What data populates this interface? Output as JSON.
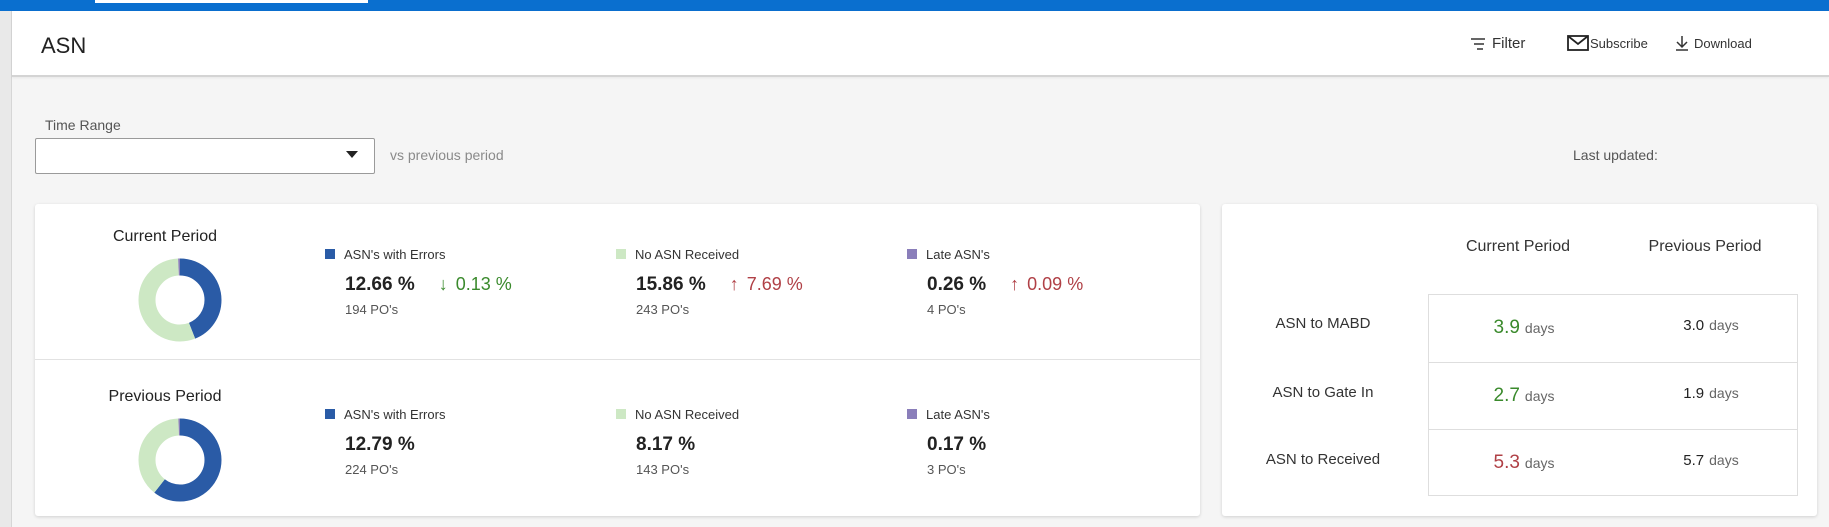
{
  "header": {
    "title": "ASN",
    "filter_label": "Filter",
    "subscribe_label": "Subscribe",
    "download_label": "Download"
  },
  "time_range": {
    "label": "Time Range",
    "value": "",
    "vs_label": "vs previous period",
    "last_updated_label": "Last updated:"
  },
  "colors": {
    "errors": "#2a5ba6",
    "no_asn": "#cde8c4",
    "late": "#8a7eba",
    "good": "#3a8a2c",
    "bad": "#b04046",
    "topbar": "#0a6fcf"
  },
  "summary": {
    "current": {
      "title": "Current Period",
      "donut": [
        12.66,
        15.86,
        0.26
      ],
      "metrics": [
        {
          "legend": "ASN's with Errors",
          "value": "12.66 %",
          "change": "0.13 %",
          "direction": "down",
          "pos": "194 PO's"
        },
        {
          "legend": "No ASN Received",
          "value": "15.86 %",
          "change": "7.69 %",
          "direction": "up",
          "pos": "243 PO's"
        },
        {
          "legend": "Late ASN's",
          "value": "0.26 %",
          "change": "0.09 %",
          "direction": "up",
          "pos": "4 PO's"
        }
      ]
    },
    "previous": {
      "title": "Previous Period",
      "donut": [
        12.79,
        8.17,
        0.17
      ],
      "metrics": [
        {
          "legend": "ASN's with Errors",
          "value": "12.79 %",
          "pos": "224 PO's"
        },
        {
          "legend": "No ASN Received",
          "value": "8.17 %",
          "pos": "143 PO's"
        },
        {
          "legend": "Late ASN's",
          "value": "0.17 %",
          "pos": "3 PO's"
        }
      ]
    }
  },
  "comparison": {
    "headers": {
      "current": "Current Period",
      "previous": "Previous Period"
    },
    "unit": "days",
    "rows": [
      {
        "label": "ASN to MABD",
        "current": "3.9",
        "previous": "3.0",
        "status": "good"
      },
      {
        "label": "ASN to Gate In",
        "current": "2.7",
        "previous": "1.9",
        "status": "good"
      },
      {
        "label": "ASN to Received",
        "current": "5.3",
        "previous": "5.7",
        "status": "bad"
      }
    ]
  }
}
